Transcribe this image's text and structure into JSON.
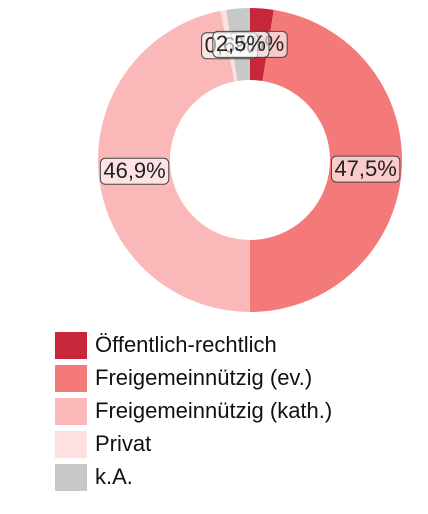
{
  "chart_data": {
    "type": "donut",
    "categories": [
      "Öffentlich-rechtlich",
      "Freigemeinnützig (ev.)",
      "Freigemeinnützig (kath.)",
      "Privat",
      "k.A."
    ],
    "values": [
      2.5,
      47.5,
      46.9,
      0.6,
      2.5
    ],
    "value_labels": [
      "2,5%",
      "47,5%",
      "46,9%",
      "0,6%",
      "2,5%"
    ],
    "colors": [
      "#c8263a",
      "#f47a7a",
      "#fbb8b8",
      "#fde0e0",
      "#c8c8c8"
    ],
    "legend": "bottom"
  }
}
